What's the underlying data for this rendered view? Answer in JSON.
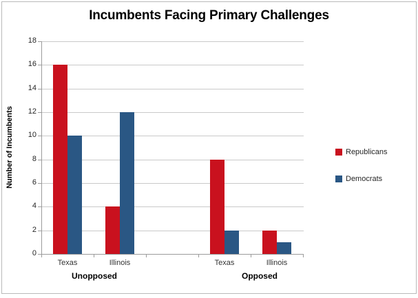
{
  "chart_data": {
    "type": "bar",
    "title": "Incumbents Facing Primary Challenges",
    "ylabel": "Number of Incumbents",
    "xlabel": "",
    "ylim": [
      0,
      18
    ],
    "ytick_step": 2,
    "ytick_labels": [
      "0",
      "2",
      "4",
      "6",
      "8",
      "10",
      "12",
      "14",
      "16",
      "18"
    ],
    "grid": true,
    "legend_position": "right",
    "categories": [
      "Texas",
      "Illinois",
      "Texas",
      "Illinois"
    ],
    "groups": [
      {
        "label": "Unopposed",
        "category_indexes": [
          0,
          1
        ]
      },
      {
        "label": "Opposed",
        "category_indexes": [
          2,
          3
        ]
      }
    ],
    "series": [
      {
        "name": "Republicans",
        "color": "#C9111E",
        "values": [
          16,
          4,
          8,
          2
        ]
      },
      {
        "name": "Democrats",
        "color": "#2A5784",
        "values": [
          10,
          12,
          2,
          1
        ]
      }
    ],
    "colors": {
      "gridline": "#C9C9C9",
      "axis": "#9B9B9B",
      "tick_label": "#262626",
      "title": "#000000"
    }
  }
}
